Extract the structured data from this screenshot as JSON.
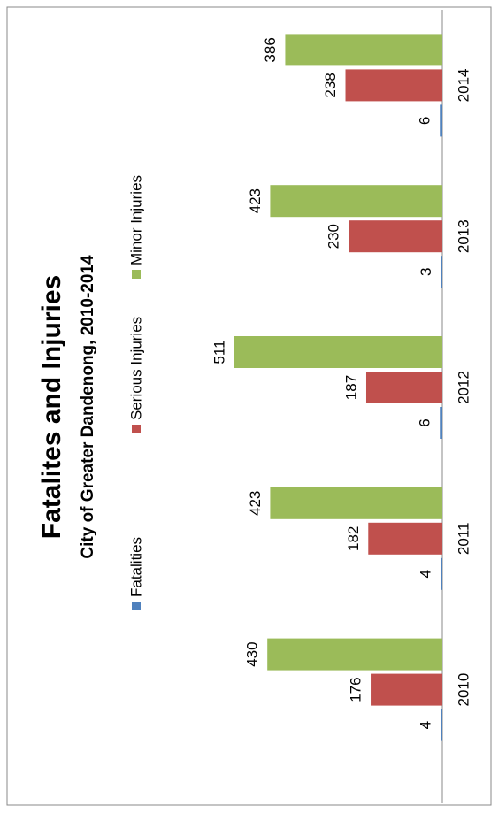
{
  "chart_data": {
    "type": "bar",
    "title": "Fatalites and Injuries",
    "subtitle": "City of Greater Dandenong, 2010-2014",
    "categories": [
      "2010",
      "2011",
      "2012",
      "2013",
      "2014"
    ],
    "series": [
      {
        "name": "Fatalities",
        "color": "#4f81bd",
        "values": [
          4,
          4,
          6,
          3,
          6
        ]
      },
      {
        "name": "Serious Injuries",
        "color": "#c0504d",
        "values": [
          176,
          182,
          187,
          230,
          238
        ]
      },
      {
        "name": "Minor Injuries",
        "color": "#9bbb59",
        "values": [
          430,
          423,
          511,
          423,
          386
        ]
      }
    ],
    "ylim": [
      0,
      600
    ],
    "legend": "top"
  }
}
